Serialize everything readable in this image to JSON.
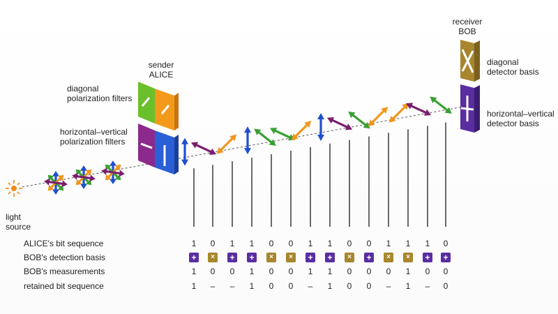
{
  "labels": {
    "sender": "sender\nALICE",
    "receiver": "receiver\nBOB",
    "diagonal_filters": "diagonal\npolarization filters",
    "hv_filters": "horizontal–vertical\npolarization filters",
    "diagonal_detector": "diagonal\ndetector basis",
    "hv_detector": "horizontal–vertical\ndetector basis",
    "light_source": "light\nsource"
  },
  "rows": {
    "alice_bits": {
      "label": "ALICE's bit sequence",
      "values": [
        "1",
        "0",
        "1",
        "1",
        "0",
        "0",
        "1",
        "1",
        "0",
        "0",
        "1",
        "1",
        "1",
        "0"
      ]
    },
    "bob_basis": {
      "label": "BOB's detection basis",
      "values": [
        "+",
        "×",
        "+",
        "+",
        "×",
        "×",
        "+",
        "+",
        "×",
        "+",
        "×",
        "×",
        "+",
        "+"
      ]
    },
    "bob_measurements": {
      "label": "BOB's measurements",
      "values": [
        "1",
        "0",
        "0",
        "1",
        "0",
        "0",
        "1",
        "1",
        "0",
        "0",
        "0",
        "1",
        "0",
        "0"
      ]
    },
    "retained": {
      "label": "retained bit sequence",
      "values": [
        "1",
        "–",
        "–",
        "1",
        "0",
        "0",
        "–",
        "1",
        "0",
        "0",
        "–",
        "1",
        "–",
        "0"
      ]
    }
  },
  "photon_polarizations": [
    "vertical",
    "diag-down",
    "diag-up",
    "vertical",
    "diag-down",
    "diag-down",
    "diag-up",
    "vertical",
    "diag-down",
    "diag-down",
    "diag-up",
    "diag-up",
    "diag-down",
    "diag-down"
  ],
  "colors": {
    "plus_basis": "#5a2ea0",
    "cross_basis": "#a8862e",
    "vertical": "#1f4fd0",
    "diag_up": "#f0961e",
    "diag_down": "#3aa034",
    "horizontal": "#7a1f6e",
    "filter_green": "#6bbf2a",
    "filter_orange": "#f39a1c",
    "filter_purple": "#8b2a8c",
    "filter_blue": "#2a5fd6",
    "light": "#f08a1a"
  }
}
